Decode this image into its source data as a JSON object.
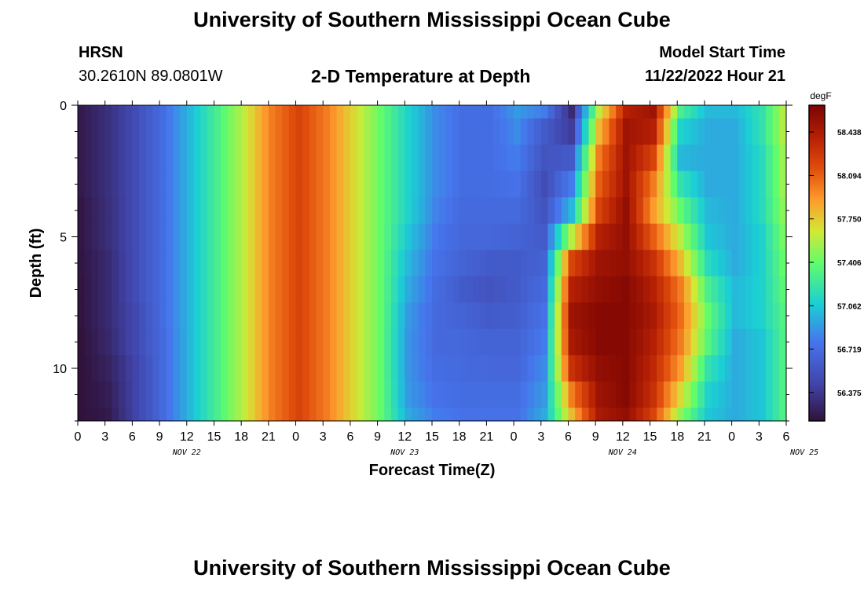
{
  "header": {
    "title": "University of Southern Mississippi Ocean Cube",
    "station": "HRSN",
    "coords": "30.2610N  89.0801W",
    "chart_title": "2-D Temperature at Depth",
    "model_label": "Model Start Time",
    "model_time": "11/22/2022 Hour 21"
  },
  "footer": {
    "title": "University of Southern Mississippi Ocean Cube"
  },
  "chart_data": {
    "type": "heatmap",
    "title": "2-D Temperature at Depth",
    "xlabel": "Forecast Time(Z)",
    "ylabel": "Depth (ft)",
    "x_start": "2022-11-22 00Z",
    "x_tick_labels": [
      "0",
      "3",
      "6",
      "9",
      "12",
      "15",
      "18",
      "21",
      "0",
      "3",
      "6",
      "9",
      "12",
      "15",
      "18",
      "21",
      "0",
      "3",
      "6",
      "9",
      "12",
      "15",
      "18",
      "21",
      "0",
      "3",
      "6"
    ],
    "date_labels": [
      {
        "label": "NOV 22",
        "at_hour": 12
      },
      {
        "label": "NOV 23",
        "at_hour": 36
      },
      {
        "label": "NOV 24",
        "at_hour": 60
      },
      {
        "label": "NOV 25",
        "at_hour": 80
      }
    ],
    "xlim_hours": [
      0,
      78
    ],
    "ylim": [
      12,
      0
    ],
    "y_ticks": [
      0,
      5,
      10
    ],
    "colorbar": {
      "unit": "degF",
      "min": 56.15,
      "max": 58.65,
      "ticks": [
        "58.438",
        "58.094",
        "57.750",
        "57.406",
        "57.062",
        "56.719",
        "56.375"
      ]
    },
    "depths_ft": [
      0,
      1,
      2,
      3,
      4,
      5,
      6,
      7,
      8,
      9,
      10,
      11,
      12
    ],
    "hours": [
      0,
      3,
      6,
      9,
      12,
      15,
      18,
      21,
      24,
      27,
      30,
      33,
      36,
      39,
      42,
      45,
      48,
      51,
      54,
      57,
      60,
      63,
      66,
      69,
      72,
      75,
      78
    ],
    "temps_degF": [
      [
        56.2,
        56.33,
        56.5,
        56.72,
        57.0,
        57.3,
        57.62,
        58.0,
        58.2,
        58.0,
        57.7,
        57.4,
        57.1,
        56.85,
        56.72,
        56.72,
        56.9,
        56.8,
        56.3,
        57.6,
        58.4,
        58.5,
        57.3,
        57.0,
        57.0,
        57.2,
        57.7
      ],
      [
        56.2,
        56.33,
        56.5,
        56.72,
        57.0,
        57.3,
        57.62,
        58.0,
        58.2,
        58.0,
        57.7,
        57.4,
        57.1,
        56.85,
        56.72,
        56.72,
        56.85,
        56.6,
        56.4,
        57.8,
        58.5,
        58.4,
        57.1,
        56.95,
        56.95,
        57.2,
        57.7
      ],
      [
        56.2,
        56.33,
        56.5,
        56.72,
        57.0,
        57.3,
        57.62,
        58.0,
        58.2,
        58.0,
        57.7,
        57.4,
        57.1,
        56.85,
        56.72,
        56.72,
        56.8,
        56.55,
        56.6,
        58.0,
        58.5,
        58.2,
        57.0,
        56.95,
        56.95,
        57.15,
        57.65
      ],
      [
        56.2,
        56.33,
        56.5,
        56.72,
        57.0,
        57.3,
        57.62,
        58.0,
        58.2,
        58.0,
        57.7,
        57.4,
        57.1,
        56.85,
        56.72,
        56.72,
        56.75,
        56.5,
        56.8,
        58.1,
        58.5,
        58.0,
        57.2,
        56.95,
        56.95,
        57.15,
        57.65
      ],
      [
        56.18,
        56.32,
        56.5,
        56.72,
        57.0,
        57.3,
        57.62,
        58.0,
        58.2,
        58.0,
        57.7,
        57.4,
        57.1,
        56.82,
        56.7,
        56.7,
        56.7,
        56.55,
        57.0,
        58.2,
        58.55,
        57.9,
        57.4,
        57.0,
        56.95,
        57.15,
        57.6
      ],
      [
        56.18,
        56.32,
        56.5,
        56.72,
        57.0,
        57.3,
        57.62,
        58.0,
        58.2,
        58.0,
        57.7,
        57.4,
        57.05,
        56.78,
        56.68,
        56.68,
        56.65,
        56.6,
        57.6,
        58.4,
        58.55,
        58.1,
        57.6,
        57.05,
        56.95,
        57.1,
        57.55
      ],
      [
        56.17,
        56.3,
        56.5,
        56.72,
        57.0,
        57.3,
        57.62,
        58.0,
        58.2,
        58.0,
        57.7,
        57.4,
        57.0,
        56.75,
        56.65,
        56.6,
        56.6,
        56.65,
        58.2,
        58.5,
        58.55,
        58.3,
        57.8,
        57.15,
        56.95,
        57.1,
        57.5
      ],
      [
        56.16,
        56.3,
        56.5,
        56.72,
        57.0,
        57.3,
        57.62,
        58.0,
        58.2,
        58.0,
        57.7,
        57.4,
        56.95,
        56.72,
        56.6,
        56.55,
        56.6,
        56.7,
        58.4,
        58.55,
        58.6,
        58.4,
        58.0,
        57.3,
        57.0,
        57.1,
        57.45
      ],
      [
        56.16,
        56.3,
        56.48,
        56.72,
        57.0,
        57.3,
        57.62,
        58.0,
        58.2,
        58.0,
        57.7,
        57.4,
        56.9,
        56.7,
        56.65,
        56.6,
        56.62,
        56.75,
        58.5,
        58.6,
        58.6,
        58.45,
        58.05,
        57.4,
        57.0,
        57.1,
        57.4
      ],
      [
        56.15,
        56.28,
        56.48,
        56.7,
        57.0,
        57.3,
        57.62,
        58.0,
        58.2,
        58.0,
        57.7,
        57.4,
        56.88,
        56.7,
        56.68,
        56.65,
        56.65,
        56.8,
        58.45,
        58.6,
        58.6,
        58.4,
        58.0,
        57.35,
        56.95,
        57.05,
        57.4
      ],
      [
        56.15,
        56.25,
        56.45,
        56.7,
        57.0,
        57.3,
        57.62,
        58.0,
        58.2,
        58.0,
        57.7,
        57.4,
        56.88,
        56.72,
        56.7,
        56.68,
        56.68,
        56.85,
        58.3,
        58.55,
        58.6,
        58.35,
        57.9,
        57.2,
        56.95,
        57.05,
        57.4
      ],
      [
        56.15,
        56.22,
        56.45,
        56.7,
        57.0,
        57.3,
        57.62,
        58.0,
        58.2,
        58.0,
        57.7,
        57.4,
        56.9,
        56.75,
        56.72,
        56.72,
        56.72,
        56.9,
        58.0,
        58.5,
        58.6,
        58.3,
        57.7,
        57.1,
        56.95,
        57.05,
        57.4
      ],
      [
        56.15,
        56.2,
        56.45,
        56.7,
        57.0,
        57.3,
        57.62,
        58.0,
        58.2,
        58.0,
        57.7,
        57.4,
        56.95,
        56.8,
        56.75,
        56.75,
        56.75,
        56.95,
        57.8,
        58.45,
        58.55,
        58.2,
        57.5,
        57.05,
        56.95,
        57.05,
        57.4
      ]
    ]
  }
}
